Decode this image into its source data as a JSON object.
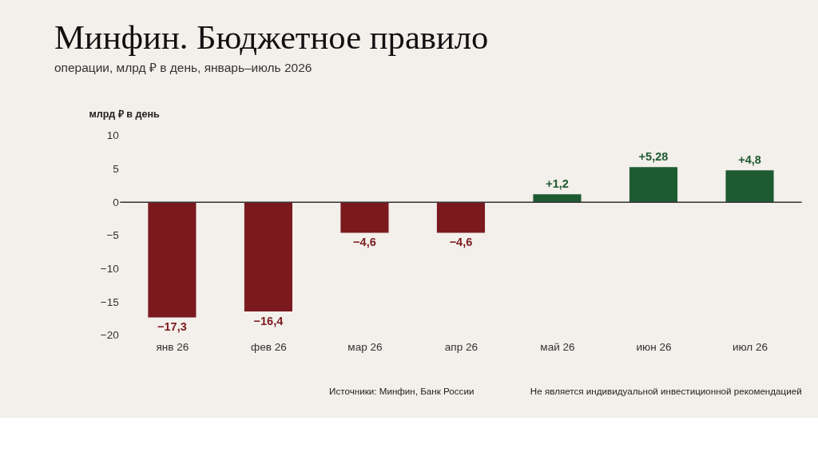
{
  "chart_data": {
    "type": "bar",
    "title": "Минфин. Бюджетное правило",
    "subtitle": "операции, млрд ₽ в день, январь–июль 2026",
    "ylabel": "млрд ₽ в день",
    "categories": [
      "янв 26",
      "фев 26",
      "мар 26",
      "апр 26",
      "май 26",
      "июн 26",
      "июл 26"
    ],
    "values": [
      -17.3,
      -16.4,
      -4.6,
      -4.6,
      1.2,
      5.28,
      4.8
    ],
    "colors": [
      "#7a1a1f",
      "#7a1a1f",
      "#7a1a1f",
      "#7a1a1f",
      "#1e5a32",
      "#1e5a32",
      "#1e5a32"
    ],
    "value_labels": [
      "−17,3",
      "−16,4",
      "−4,6",
      "−4,6",
      "+1,2",
      "+5,28",
      "+4,8"
    ],
    "ylim": [
      -20,
      10
    ],
    "yticks": [
      -20,
      -15,
      -10,
      -5,
      0,
      5,
      10
    ],
    "grid": false,
    "ref_lines": [
      {
        "axis": "y",
        "value": 0,
        "color": "#333333"
      }
    ],
    "annotations": [
      "Источники: Минфин, Банк России",
      "Не является индивидуальной инвестиционной рекомендацией"
    ]
  }
}
